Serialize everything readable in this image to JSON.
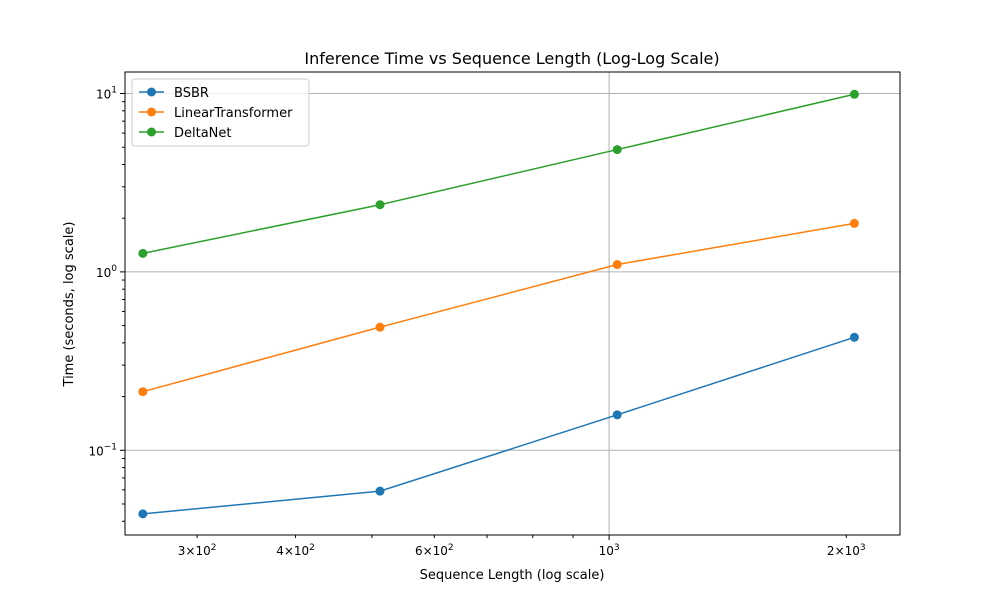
{
  "chart_data": {
    "type": "line",
    "title": "Inference Time vs Sequence Length (Log-Log Scale)",
    "xlabel": "Sequence Length (log scale)",
    "ylabel": "Time (seconds, log scale)",
    "x_scale": "log",
    "y_scale": "log",
    "xlim": [
      243,
      2340
    ],
    "ylim": [
      0.0335,
      13.2
    ],
    "x_major_ticks": [
      1000
    ],
    "x_minor_ticks": [
      300,
      400,
      600,
      2000
    ],
    "y_major_ticks": [
      0.1,
      1,
      10
    ],
    "x_tick_labels": [
      {
        "value": 300,
        "base": "3",
        "mult": "×10",
        "exp": "2"
      },
      {
        "value": 400,
        "base": "4",
        "mult": "×10",
        "exp": "2"
      },
      {
        "value": 600,
        "base": "6",
        "mult": "×10",
        "exp": "2"
      },
      {
        "value": 1000,
        "base": "",
        "mult": "10",
        "exp": "3"
      },
      {
        "value": 2000,
        "base": "2",
        "mult": "×10",
        "exp": "3"
      }
    ],
    "y_tick_labels": [
      {
        "value": 0.1,
        "mult": "10",
        "exp": "−1"
      },
      {
        "value": 1,
        "mult": "10",
        "exp": "0"
      },
      {
        "value": 10,
        "mult": "10",
        "exp": "1"
      }
    ],
    "grid": true,
    "legend_position": "top-left",
    "x": [
      256,
      512,
      1024,
      2048
    ],
    "series": [
      {
        "name": "BSBR",
        "color": "#1f77b4",
        "values": [
          0.044,
          0.059,
          0.158,
          0.43
        ]
      },
      {
        "name": "LinearTransformer",
        "color": "#ff7f0e",
        "values": [
          0.213,
          0.49,
          1.1,
          1.87
        ]
      },
      {
        "name": "DeltaNet",
        "color": "#2ca02c",
        "values": [
          1.27,
          2.38,
          4.85,
          9.9
        ]
      }
    ]
  }
}
